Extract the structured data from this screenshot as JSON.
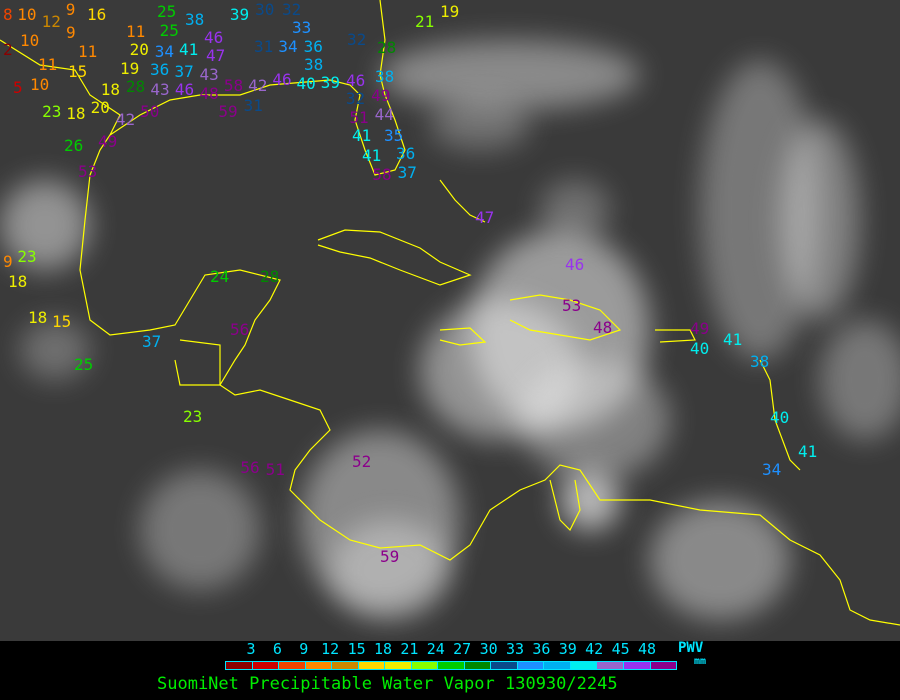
{
  "title": "SuomiNet Precipitable Water Vapor 130930/2245",
  "legend": {
    "unit_top": "PWV",
    "unit_bottom": "mm",
    "ticks": [
      "3",
      "6",
      "9",
      "12",
      "15",
      "18",
      "21",
      "24",
      "27",
      "30",
      "33",
      "36",
      "39",
      "42",
      "45",
      "48"
    ],
    "colors": [
      "#8b0000",
      "#cc0000",
      "#ee4400",
      "#ff8800",
      "#cc8800",
      "#ffd700",
      "#eeee00",
      "#88ff00",
      "#00cc00",
      "#008800",
      "#0a4a8a",
      "#1e90ff",
      "#00b0f0",
      "#00eeee",
      "#9966cc",
      "#9933ee",
      "#8b008b"
    ]
  },
  "coastline_color": "#ffff00",
  "stations": [
    "8",
    "10",
    "12",
    "9",
    "16",
    "9",
    "10",
    "2",
    "11",
    "11",
    "15",
    "19",
    "5",
    "10",
    "18",
    "28",
    "23",
    "18",
    "20",
    "26",
    "42",
    "50",
    "49",
    "53",
    "25",
    "25",
    "38",
    "34",
    "41",
    "46",
    "47",
    "36",
    "37",
    "43",
    "11",
    "20",
    "43",
    "46",
    "48",
    "58",
    "42",
    "59",
    "31",
    "39",
    "30",
    "32",
    "33",
    "34",
    "31",
    "36",
    "38",
    "32",
    "28",
    "21",
    "19",
    "39",
    "46",
    "40",
    "46",
    "32",
    "49",
    "44",
    "51",
    "41",
    "35",
    "36",
    "41",
    "58",
    "37",
    "38",
    "23",
    "9",
    "18",
    "18",
    "15",
    "25",
    "37",
    "24",
    "28",
    "56",
    "23",
    "56",
    "51",
    "52",
    "59",
    "47",
    "46",
    "53",
    "48",
    "49",
    "40",
    "41",
    "38",
    "40",
    "41",
    "34"
  ]
}
